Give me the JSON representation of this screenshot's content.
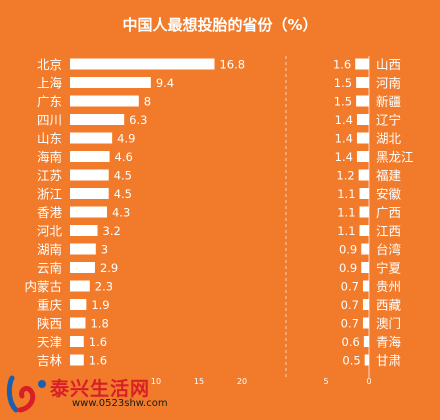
{
  "chart_data": [
    {
      "type": "bar",
      "orientation": "horizontal",
      "title": "中国人最想投胎的省份（%）",
      "categories": [
        "北京",
        "上海",
        "广东",
        "四川",
        "山东",
        "海南",
        "江苏",
        "浙江",
        "香港",
        "河北",
        "湖南",
        "云南",
        "内蒙古",
        "重庆",
        "陕西",
        "天津",
        "吉林"
      ],
      "values": [
        16.8,
        9.4,
        8,
        6.3,
        4.9,
        4.6,
        4.5,
        4.5,
        4.3,
        3.2,
        3,
        2.9,
        2.3,
        1.9,
        1.8,
        1.6,
        1.6
      ],
      "value_labels": [
        "16.8",
        "9.4",
        "8",
        "6.3",
        "4.9",
        "4.6",
        "4.5",
        "4.5",
        "4.3",
        "3.2",
        "3",
        "2.9",
        "2.3",
        "1.9",
        "1.8",
        "1.6",
        "1.6"
      ],
      "xlim": [
        0,
        20
      ],
      "xticks": [
        "10",
        "15",
        "20"
      ],
      "bar_color": "#ffffff"
    },
    {
      "type": "bar",
      "orientation": "horizontal",
      "direction": "reversed",
      "categories": [
        "山西",
        "河南",
        "新疆",
        "辽宁",
        "湖北",
        "黑龙江",
        "福建",
        "安徽",
        "广西",
        "江西",
        "台湾",
        "宁夏",
        "贵州",
        "西藏",
        "澳门",
        "青海",
        "甘肃"
      ],
      "values": [
        1.6,
        1.5,
        1.5,
        1.4,
        1.4,
        1.4,
        1.2,
        1.1,
        1.1,
        1.1,
        0.9,
        0.9,
        0.7,
        0.7,
        0.7,
        0.6,
        0.5
      ],
      "value_labels": [
        "1.6",
        "1.5",
        "1.5",
        "1.4",
        "1.4",
        "1.4",
        "1.2",
        "1.1",
        "1.1",
        "1.1",
        "0.9",
        "0.9",
        "0.7",
        "0.7",
        "0.7",
        "0.6",
        "0.5"
      ],
      "xlim": [
        5,
        0
      ],
      "xticks": [
        "5",
        "0"
      ],
      "bar_color": "#ffffff"
    }
  ],
  "watermark": {
    "brand": "泰兴生活网",
    "url": "www.0523shw.com"
  },
  "colors": {
    "background": "#f27b2b",
    "text": "#ffffff",
    "watermark_brand": "#d81e27"
  }
}
